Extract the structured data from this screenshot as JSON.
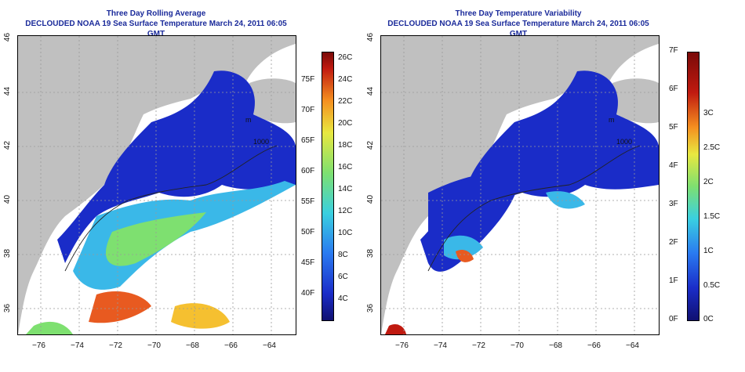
{
  "left_panel": {
    "title_line1": "Three Day Rolling Average",
    "title_line2": "DECLOUDED NOAA 19 Sea Surface Temperature March 24, 2011 06:05 GMT",
    "lat_ticks": [
      "36",
      "38",
      "40",
      "42",
      "44",
      "46"
    ],
    "lon_ticks": [
      "−76",
      "−74",
      "−72",
      "−70",
      "−68",
      "−66",
      "−64"
    ],
    "colorbar_celsius": [
      "4C",
      "6C",
      "8C",
      "10C",
      "12C",
      "14C",
      "16C",
      "18C",
      "20C",
      "22C",
      "24C",
      "26C"
    ],
    "colorbar_fahrenheit": [
      "40F",
      "45F",
      "50F",
      "55F",
      "60F",
      "65F",
      "70F",
      "75F"
    ]
  },
  "right_panel": {
    "title_line1": "Three Day Temperature Variability",
    "title_line2": "DECLOUDED NOAA 19 Sea Surface Temperature March 24, 2011 06:05 GMT",
    "lat_ticks": [
      "36",
      "38",
      "40",
      "42",
      "44",
      "46"
    ],
    "lon_ticks": [
      "−76",
      "−74",
      "−72",
      "−70",
      "−68",
      "−66",
      "−64"
    ],
    "colorbar_fahrenheit": [
      "0F",
      "1F",
      "2F",
      "3F",
      "4F",
      "5F",
      "6F",
      "7F"
    ],
    "colorbar_celsius": [
      "0C",
      "0.5C",
      "1C",
      "1.5C",
      "2C",
      "2.5C",
      "3C"
    ]
  },
  "map_labels": {
    "isobath_1000": "1000",
    "isobath_m": "m"
  },
  "colors": {
    "title": "#1a2a9a",
    "land": "#c0c0c0",
    "cold": "#1a2cc8",
    "warm": "#e85a20"
  }
}
